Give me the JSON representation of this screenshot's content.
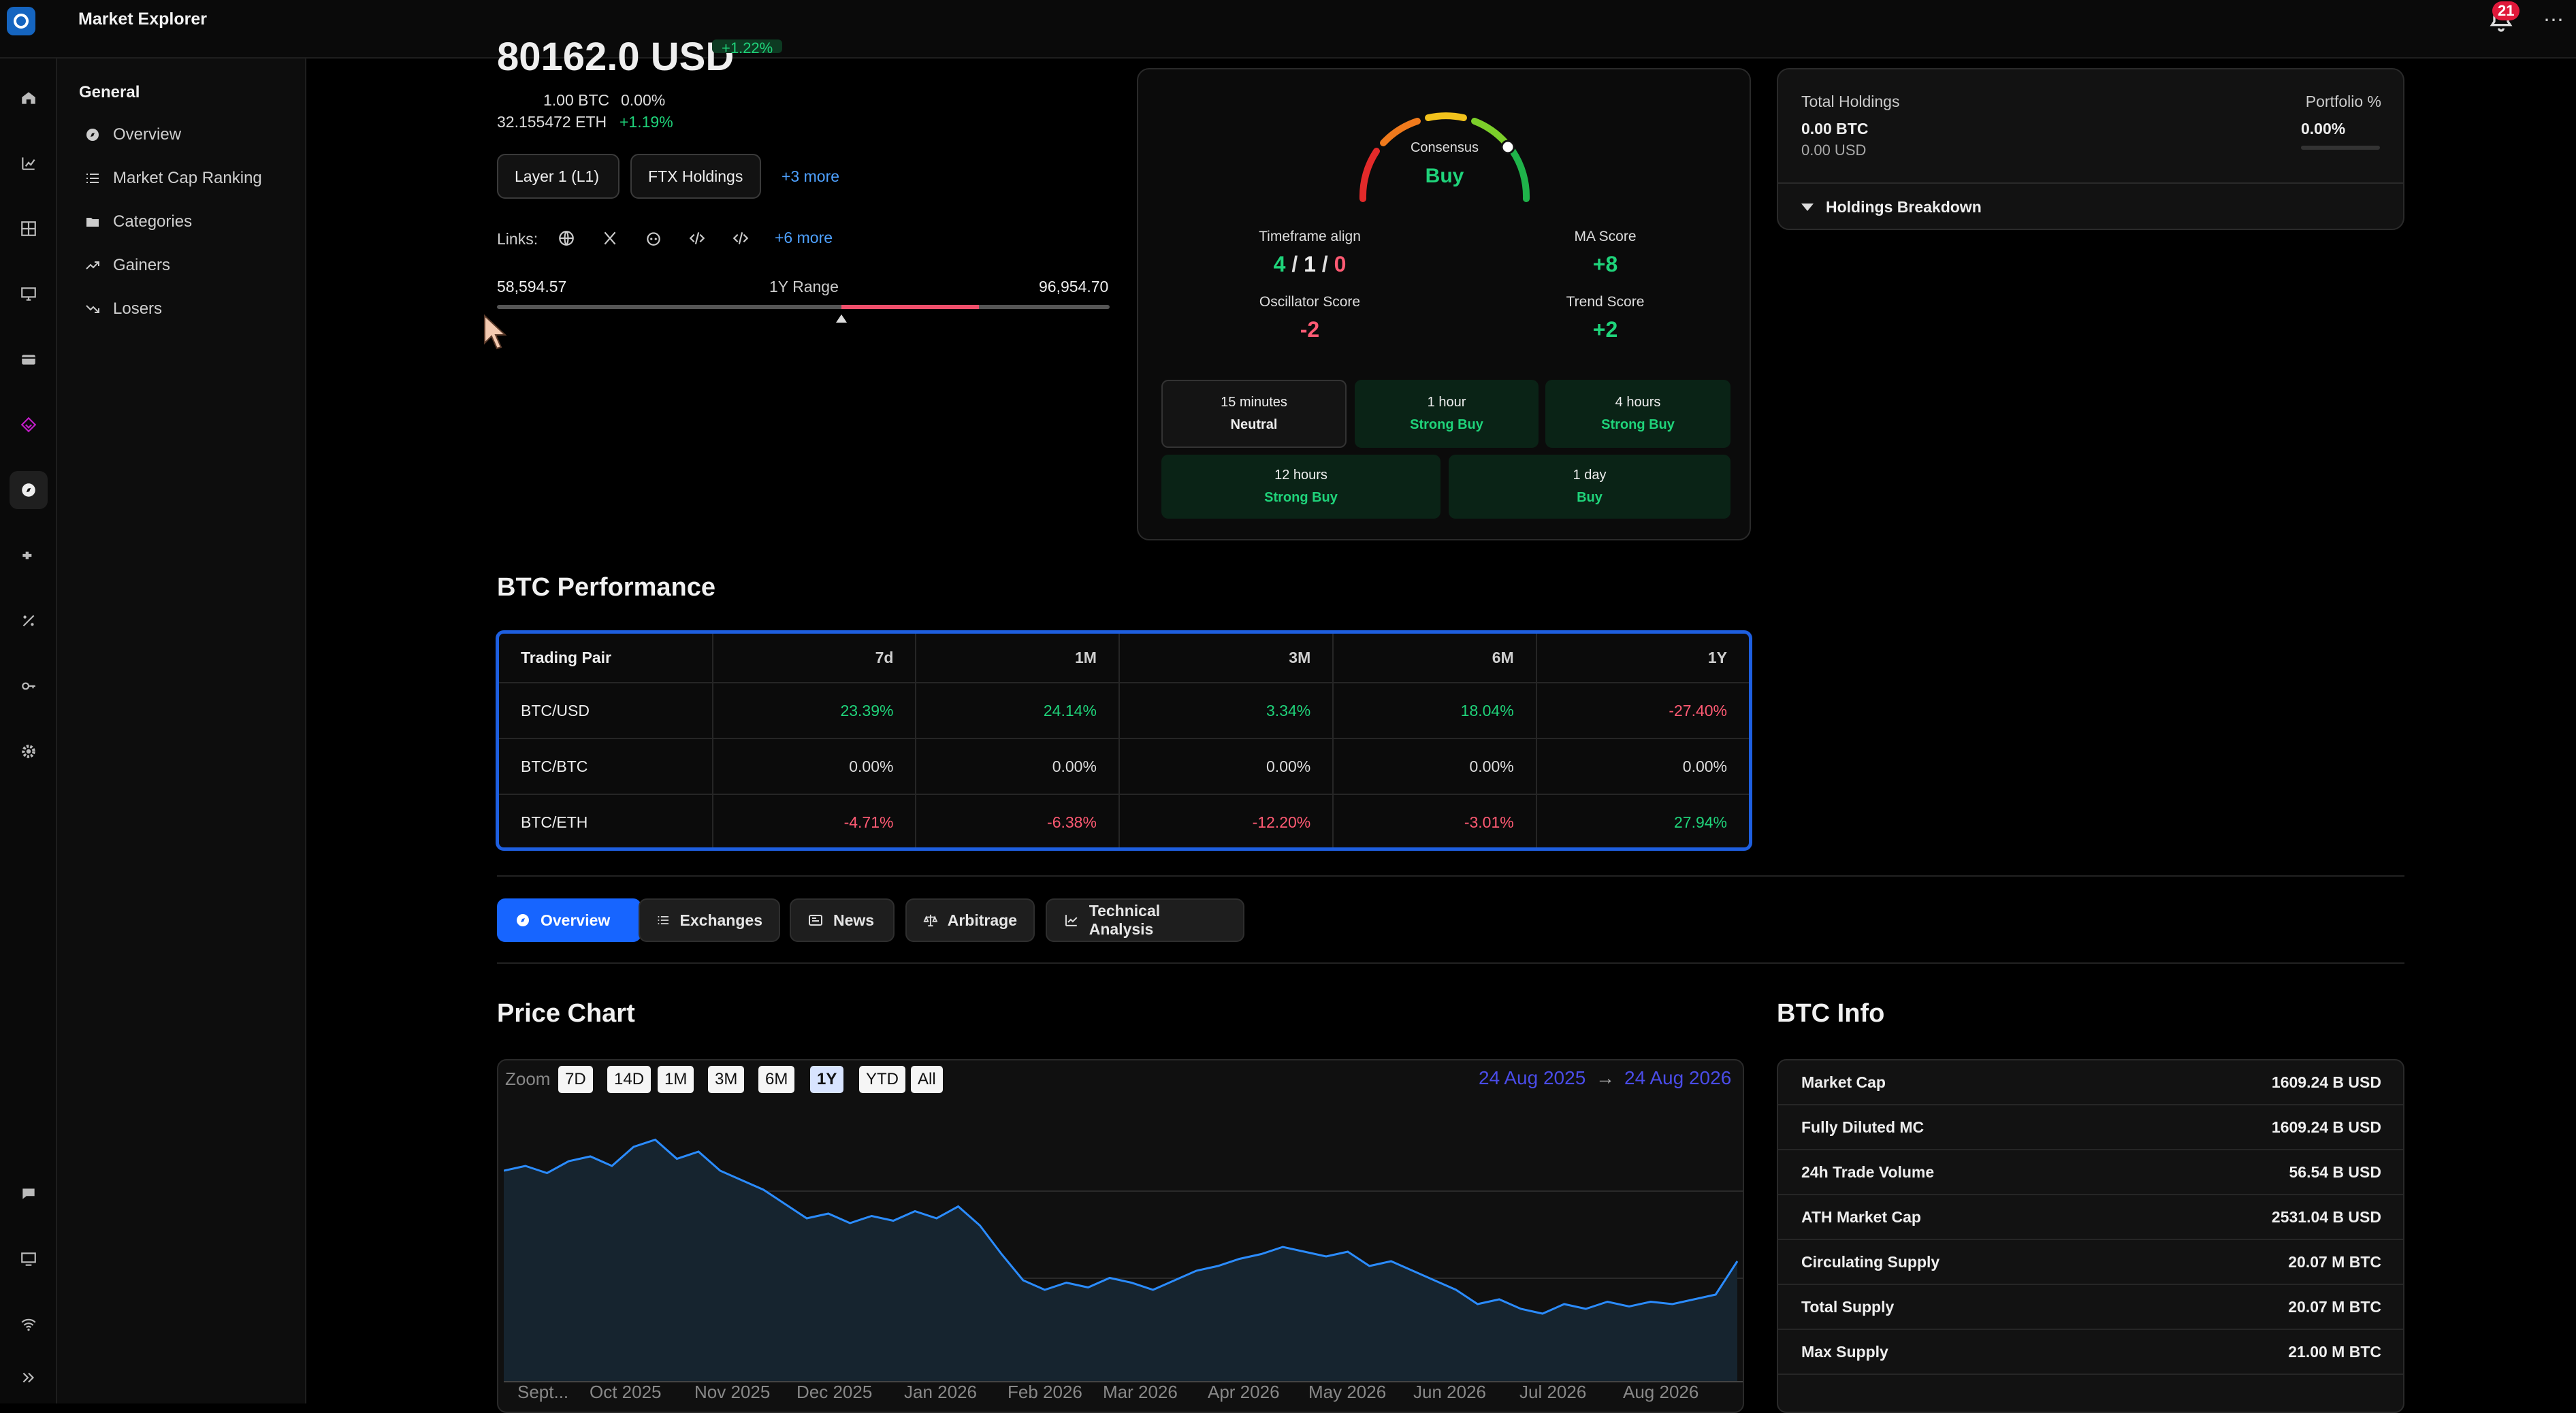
{
  "app": {
    "title": "Market Explorer",
    "notifications": "21"
  },
  "subnav": {
    "heading": "General",
    "items": [
      {
        "label": "Overview",
        "icon": "compass-icon"
      },
      {
        "label": "Market Cap Ranking",
        "icon": "list-icon"
      },
      {
        "label": "Categories",
        "icon": "folder-icon"
      },
      {
        "label": "Gainers",
        "icon": "trending-up-icon"
      },
      {
        "label": "Losers",
        "icon": "trending-down-icon"
      }
    ]
  },
  "coin": {
    "price": "80162.0 USD",
    "price_change": "+1.22%",
    "btc_value": "1.00 BTC",
    "btc_change": "0.00%",
    "eth_value": "32.155472 ETH",
    "eth_change": "+1.19%",
    "tags": [
      "Layer 1 (L1)",
      "FTX Holdings"
    ],
    "tags_more": "+3 more",
    "links_label": "Links:",
    "links_more": "+6 more",
    "range_low": "58,594.57",
    "range_label": "1Y Range",
    "range_high": "96,954.70"
  },
  "technical": {
    "consensus_label": "Consensus",
    "consensus_value": "Buy",
    "timeframe_label": "Timeframe align",
    "timeframe_buy": "4",
    "timeframe_neutral": "1",
    "timeframe_sell": "0",
    "ma_label": "MA Score",
    "ma_value": "+8",
    "osc_label": "Oscillator Score",
    "osc_value": "-2",
    "trend_label": "Trend Score",
    "trend_value": "+2",
    "timeframes": [
      {
        "period": "15 minutes",
        "signal": "Neutral"
      },
      {
        "period": "1 hour",
        "signal": "Strong Buy"
      },
      {
        "period": "4 hours",
        "signal": "Strong Buy"
      },
      {
        "period": "12 hours",
        "signal": "Strong Buy"
      },
      {
        "period": "1 day",
        "signal": "Buy"
      }
    ]
  },
  "holdings": {
    "total_label": "Total Holdings",
    "total_btc": "0.00 BTC",
    "total_usd": "0.00 USD",
    "portfolio_label": "Portfolio %",
    "portfolio_value": "0.00%",
    "breakdown_label": "Holdings Breakdown"
  },
  "performance": {
    "title": "BTC Performance",
    "headers": [
      "Trading Pair",
      "7d",
      "1M",
      "3M",
      "6M",
      "1Y"
    ],
    "rows": [
      {
        "pair": "BTC/USD",
        "values": [
          "23.39%",
          "24.14%",
          "3.34%",
          "18.04%",
          "-27.40%"
        ]
      },
      {
        "pair": "BTC/BTC",
        "values": [
          "0.00%",
          "0.00%",
          "0.00%",
          "0.00%",
          "0.00%"
        ]
      },
      {
        "pair": "BTC/ETH",
        "values": [
          "-4.71%",
          "-6.38%",
          "-12.20%",
          "-3.01%",
          "27.94%"
        ]
      }
    ]
  },
  "tabs": [
    {
      "label": "Overview",
      "icon": "compass-icon"
    },
    {
      "label": "Exchanges",
      "icon": "list-icon"
    },
    {
      "label": "News",
      "icon": "newspaper-icon"
    },
    {
      "label": "Arbitrage",
      "icon": "scale-icon"
    },
    {
      "label": "Technical Analysis",
      "icon": "line-chart-icon"
    }
  ],
  "price_chart": {
    "title": "Price Chart",
    "zoom_label": "Zoom",
    "zoom_options": [
      "7D",
      "14D",
      "1M",
      "3M",
      "6M",
      "1Y",
      "YTD",
      "All"
    ],
    "zoom_selected": "1Y",
    "date_from": "24 Aug 2025",
    "date_arrow": "→",
    "date_to": "24 Aug 2026",
    "accent": "#2b8cff"
  },
  "chart_data": {
    "type": "area",
    "x_ticks": [
      "Sept...",
      "Oct 2025",
      "Nov 2025",
      "Dec 2025",
      "Jan 2026",
      "Feb 2026",
      "Mar 2026",
      "Apr 2026",
      "May 2026",
      "Jun 2026",
      "Jul 2026",
      "Aug 2026"
    ],
    "series": [
      {
        "values": [
          0.8,
          0.82,
          0.79,
          0.84,
          0.86,
          0.82,
          0.9,
          0.93,
          0.85,
          0.88,
          0.8,
          0.76,
          0.72,
          0.66,
          0.6,
          0.62,
          0.58,
          0.61,
          0.59,
          0.63,
          0.6,
          0.65,
          0.57,
          0.45,
          0.34,
          0.3,
          0.33,
          0.31,
          0.35,
          0.33,
          0.3,
          0.34,
          0.38,
          0.4,
          0.43,
          0.45,
          0.48,
          0.46,
          0.44,
          0.46,
          0.4,
          0.42,
          0.38,
          0.34,
          0.3,
          0.24,
          0.26,
          0.22,
          0.2,
          0.24,
          0.22,
          0.25,
          0.23,
          0.25,
          0.24,
          0.26,
          0.28,
          0.42
        ]
      }
    ]
  },
  "btc_info": {
    "title": "BTC Info",
    "rows": [
      {
        "label": "Market Cap",
        "value": "1609.24 B USD"
      },
      {
        "label": "Fully Diluted MC",
        "value": "1609.24 B USD"
      },
      {
        "label": "24h Trade Volume",
        "value": "56.54 B USD"
      },
      {
        "label": "ATH Market Cap",
        "value": "2531.04 B USD"
      },
      {
        "label": "Circulating Supply",
        "value": "20.07 M BTC"
      },
      {
        "label": "Total Supply",
        "value": "20.07 M BTC"
      },
      {
        "label": "Max Supply",
        "value": "21.00 M BTC"
      }
    ]
  },
  "colors": {
    "positive": "#1fd37a",
    "negative": "#ff5a73",
    "accent": "#1765ff"
  }
}
